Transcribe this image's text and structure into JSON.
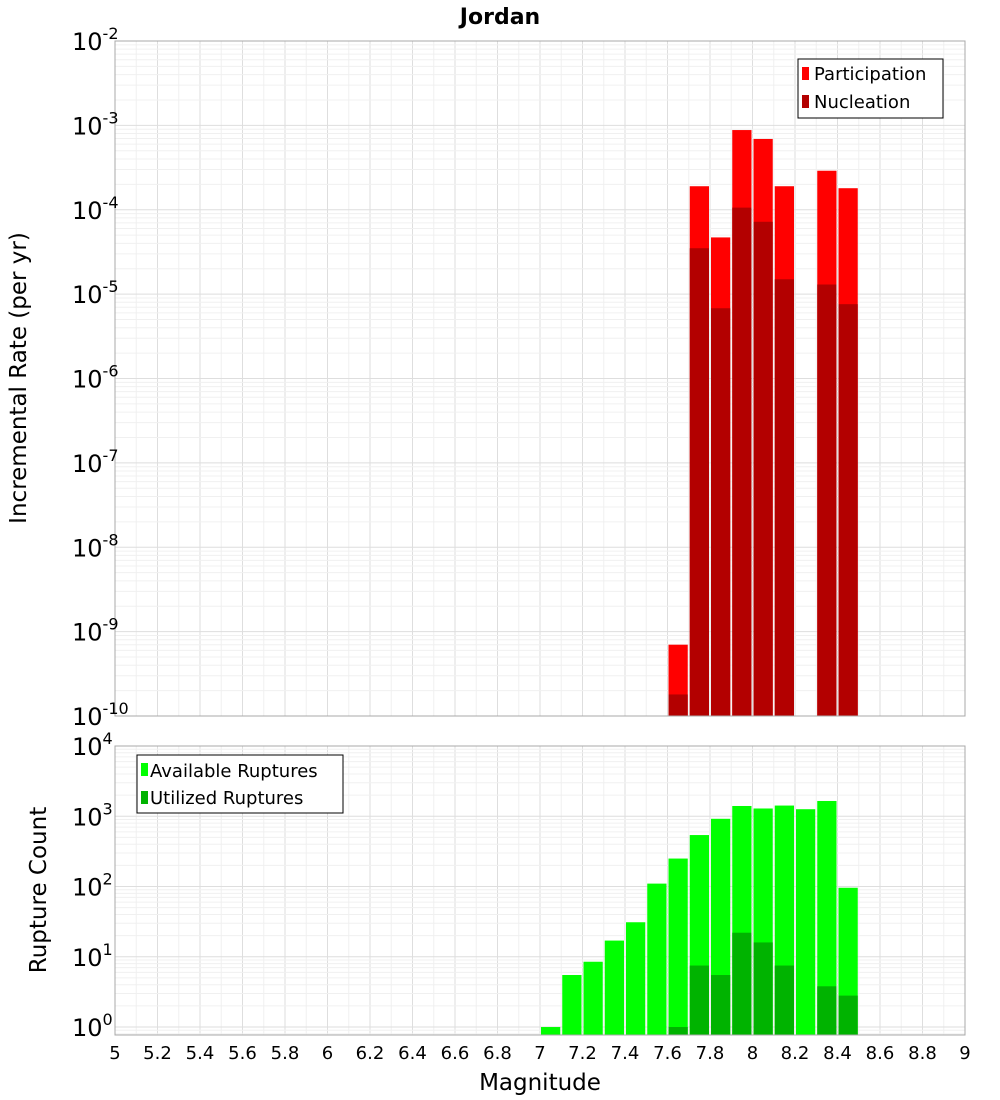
{
  "chart_data": [
    {
      "type": "bar",
      "title": "Jordan",
      "xlabel": "",
      "ylabel": "Incremental Rate (per yr)",
      "yscale": "log",
      "ylim": [
        1e-10,
        0.01
      ],
      "xlim": [
        5,
        9
      ],
      "grid": true,
      "legend_position": "top-right",
      "bin_width": 0.1,
      "x": [
        7.65,
        7.75,
        7.85,
        7.95,
        8.05,
        8.15,
        8.35,
        8.45
      ],
      "series": [
        {
          "name": "Participation",
          "color": "#ff0000",
          "values": [
            7e-10,
            0.00019,
            4.7e-05,
            0.00088,
            0.00069,
            0.00019,
            0.00029,
            0.00018
          ]
        },
        {
          "name": "Nucleation",
          "color": "#b30000",
          "values": [
            1.8e-10,
            3.5e-05,
            6.8e-06,
            0.000106,
            7.2e-05,
            1.5e-05,
            1.3e-05,
            7.6e-06
          ]
        }
      ]
    },
    {
      "type": "bar",
      "title": "",
      "xlabel": "Magnitude",
      "ylabel": "Rupture Count",
      "yscale": "log",
      "ylim": [
        0.77,
        10000
      ],
      "xlim": [
        5,
        9
      ],
      "grid": true,
      "legend_position": "top-left",
      "bin_width": 0.1,
      "x": [
        7.05,
        7.15,
        7.25,
        7.35,
        7.45,
        7.55,
        7.65,
        7.75,
        7.85,
        7.95,
        8.05,
        8.15,
        8.25,
        8.35,
        8.45
      ],
      "series": [
        {
          "name": "Available Ruptures",
          "color": "#00ff00",
          "values": [
            1,
            5.5,
            8.5,
            17,
            31,
            110,
            250,
            540,
            920,
            1400,
            1290,
            1420,
            1260,
            1650,
            96
          ]
        },
        {
          "name": "Utilized Ruptures",
          "color": "#00b300",
          "values": [
            0,
            0,
            0,
            0,
            0,
            0,
            1,
            7.5,
            5.5,
            22,
            16,
            7.5,
            0,
            3.8,
            2.8
          ]
        }
      ]
    }
  ],
  "ticks": {
    "x": [
      "5",
      "5.2",
      "5.4",
      "5.6",
      "5.8",
      "6",
      "6.2",
      "6.4",
      "6.6",
      "6.8",
      "7",
      "7.2",
      "7.4",
      "7.6",
      "7.8",
      "8",
      "8.2",
      "8.4",
      "8.6",
      "8.8",
      "9"
    ],
    "top_y_exponents": [
      "-10",
      "-9",
      "-8",
      "-7",
      "-6",
      "-5",
      "-4",
      "-3",
      "-2"
    ],
    "bottom_y_exponents": [
      "0",
      "1",
      "2",
      "3",
      "4"
    ],
    "base": "10"
  }
}
